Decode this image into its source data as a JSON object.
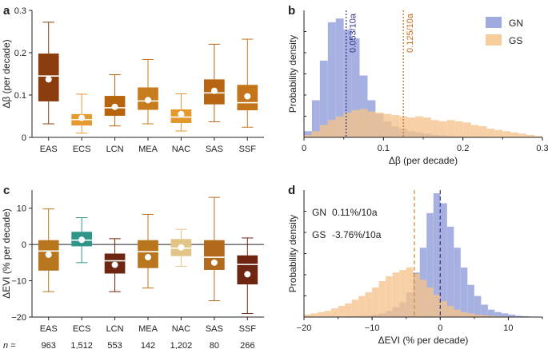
{
  "panels": [
    {
      "id": "a",
      "label": "a",
      "chart_data": {
        "type": "box",
        "ylabel": "Δβ (per decade)",
        "ylim": [
          0,
          0.3
        ],
        "yticks": [
          "0",
          "0.1",
          "0.2",
          "0.3"
        ],
        "categories": [
          "EAS",
          "ECS",
          "LCN",
          "MEA",
          "NAC",
          "SAS",
          "SSF"
        ],
        "colors": [
          "#8b3c0f",
          "#e69a2e",
          "#b8640f",
          "#c97c1e",
          "#e3982b",
          "#b86512",
          "#c4751b"
        ],
        "boxes": [
          {
            "whisker_low": 0.032,
            "q1": 0.085,
            "median": 0.145,
            "q3": 0.198,
            "whisker_high": 0.272,
            "mean": 0.137
          },
          {
            "whisker_low": 0.01,
            "q1": 0.028,
            "median": 0.042,
            "q3": 0.055,
            "whisker_high": 0.102,
            "mean": 0.046
          },
          {
            "whisker_low": 0.027,
            "q1": 0.051,
            "median": 0.07,
            "q3": 0.098,
            "whisker_high": 0.148,
            "mean": 0.072
          },
          {
            "whisker_low": 0.032,
            "q1": 0.065,
            "median": 0.086,
            "q3": 0.118,
            "whisker_high": 0.184,
            "mean": 0.088
          },
          {
            "whisker_low": 0.015,
            "q1": 0.034,
            "median": 0.048,
            "q3": 0.066,
            "whisker_high": 0.103,
            "mean": 0.055
          },
          {
            "whisker_low": 0.037,
            "q1": 0.078,
            "median": 0.105,
            "q3": 0.137,
            "whisker_high": 0.22,
            "mean": 0.11
          },
          {
            "whisker_low": 0.024,
            "q1": 0.064,
            "median": 0.082,
            "q3": 0.124,
            "whisker_high": 0.232,
            "mean": 0.097
          }
        ]
      }
    },
    {
      "id": "b",
      "label": "b",
      "chart_data": {
        "type": "histogram",
        "xlabel": "Δβ (per decade)",
        "ylabel": "Probability density",
        "xlim": [
          0,
          0.3
        ],
        "xticks": [
          "0",
          "0.1",
          "0.2",
          "0.3"
        ],
        "bin_width": 0.01,
        "series": [
          {
            "name": "GN",
            "color": "#8e9bd9",
            "bin_start": 0.0,
            "values": [
              0.05,
              0.3,
              0.62,
              0.93,
              0.96,
              0.87,
              0.8,
              0.5,
              0.3,
              0.19,
              0.13,
              0.09,
              0.07,
              0.05,
              0.04,
              0.03,
              0.02,
              0.015,
              0.01,
              0.01,
              0.005,
              0.005,
              0.005,
              0.003,
              0.003,
              0.002,
              0.002,
              0.002,
              0.001,
              0.001
            ]
          },
          {
            "name": "GS",
            "color": "#f6c48c",
            "bin_start": 0.0,
            "values": [
              0.02,
              0.05,
              0.1,
              0.14,
              0.17,
              0.2,
              0.22,
              0.23,
              0.21,
              0.2,
              0.19,
              0.18,
              0.17,
              0.16,
              0.17,
              0.16,
              0.14,
              0.13,
              0.14,
              0.13,
              0.12,
              0.1,
              0.09,
              0.07,
              0.06,
              0.05,
              0.04,
              0.03,
              0.02,
              0.01
            ]
          }
        ],
        "vlines": [
          {
            "x": 0.053,
            "label": "0.053/10a",
            "color": "#2f3480"
          },
          {
            "x": 0.125,
            "label": "0.125/10a",
            "color": "#c46a18"
          }
        ],
        "legend": "top-right"
      }
    },
    {
      "id": "c",
      "label": "c",
      "chart_data": {
        "type": "box",
        "ylabel": "ΔEVI (% per decade)",
        "ylim": [
          -20,
          15
        ],
        "yticks": [
          "−20",
          "−10",
          "0",
          "10"
        ],
        "ytick_values": [
          -20,
          -10,
          0,
          10
        ],
        "categories": [
          "EAS",
          "ECS",
          "LCN",
          "MEA",
          "NAC",
          "SAS",
          "SSF"
        ],
        "colors": [
          "#b8761f",
          "#2e9688",
          "#6e2511",
          "#b8761f",
          "#e2c487",
          "#b26a1c",
          "#6e2511"
        ],
        "boxes": [
          {
            "whisker_low": -13,
            "q1": -7.2,
            "median": -1.8,
            "q3": 1.2,
            "whisker_high": 9.8,
            "mean": -2.8
          },
          {
            "whisker_low": -5.0,
            "q1": -0.5,
            "median": 1.2,
            "q3": 3.5,
            "whisker_high": 7.4,
            "mean": 1.3
          },
          {
            "whisker_low": -13,
            "q1": -8.0,
            "median": -4.5,
            "q3": -2.5,
            "whisker_high": 1.6,
            "mean": -5.6
          },
          {
            "whisker_low": -12,
            "q1": -6.5,
            "median": -2.0,
            "q3": 1.2,
            "whisker_high": 8.3,
            "mean": -3.5
          },
          {
            "whisker_low": -6.0,
            "q1": -3.2,
            "median": -1.0,
            "q3": 1.5,
            "whisker_high": 4.2,
            "mean": -0.8
          },
          {
            "whisker_low": -15.5,
            "q1": -7.0,
            "median": -3.5,
            "q3": 1.2,
            "whisker_high": 13,
            "mean": -5.0
          },
          {
            "whisker_low": -19,
            "q1": -11,
            "median": -5.5,
            "q3": -3.0,
            "whisker_high": 1.8,
            "mean": -8.2
          }
        ],
        "n_label": "n =",
        "n_values": [
          "963",
          "1,512",
          "553",
          "142",
          "1,202",
          "80",
          "266"
        ]
      }
    },
    {
      "id": "d",
      "label": "d",
      "chart_data": {
        "type": "histogram",
        "xlabel": "ΔEVI (% per decade)",
        "ylabel": "Probability density",
        "xlim": [
          -20,
          15
        ],
        "xticks": [
          "−20",
          "−10",
          "0",
          "10"
        ],
        "xtick_values": [
          -20,
          -10,
          0,
          10
        ],
        "bin_width": 1,
        "series": [
          {
            "name": "GN",
            "color": "#8e9bd9",
            "bin_start": -20,
            "values": [
              0.002,
              0.002,
              0.003,
              0.003,
              0.004,
              0.005,
              0.006,
              0.008,
              0.01,
              0.014,
              0.02,
              0.03,
              0.05,
              0.08,
              0.12,
              0.2,
              0.36,
              0.56,
              0.84,
              1.0,
              0.92,
              0.73,
              0.56,
              0.4,
              0.26,
              0.17,
              0.1,
              0.06,
              0.04,
              0.03,
              0.02,
              0.01,
              0.007,
              0.004,
              0.002
            ]
          },
          {
            "name": "GS",
            "color": "#f6c48c",
            "bin_start": -20,
            "values": [
              0.02,
              0.03,
              0.04,
              0.05,
              0.07,
              0.09,
              0.11,
              0.14,
              0.17,
              0.2,
              0.24,
              0.29,
              0.33,
              0.36,
              0.38,
              0.4,
              0.35,
              0.3,
              0.24,
              0.18,
              0.13,
              0.09,
              0.06,
              0.04,
              0.03,
              0.02,
              0.015,
              0.01,
              0.008,
              0.006,
              0.004,
              0.003,
              0.002,
              0.001,
              0.001
            ]
          }
        ],
        "vlines": [
          {
            "x": 0.0,
            "color": "#2f3480"
          },
          {
            "x": -3.8,
            "color": "#d28a3a"
          }
        ],
        "annotations": [
          {
            "label": "GN",
            "value": "0.11%/10a"
          },
          {
            "label": "GS",
            "value": "-3.76%/10a"
          }
        ]
      }
    }
  ]
}
